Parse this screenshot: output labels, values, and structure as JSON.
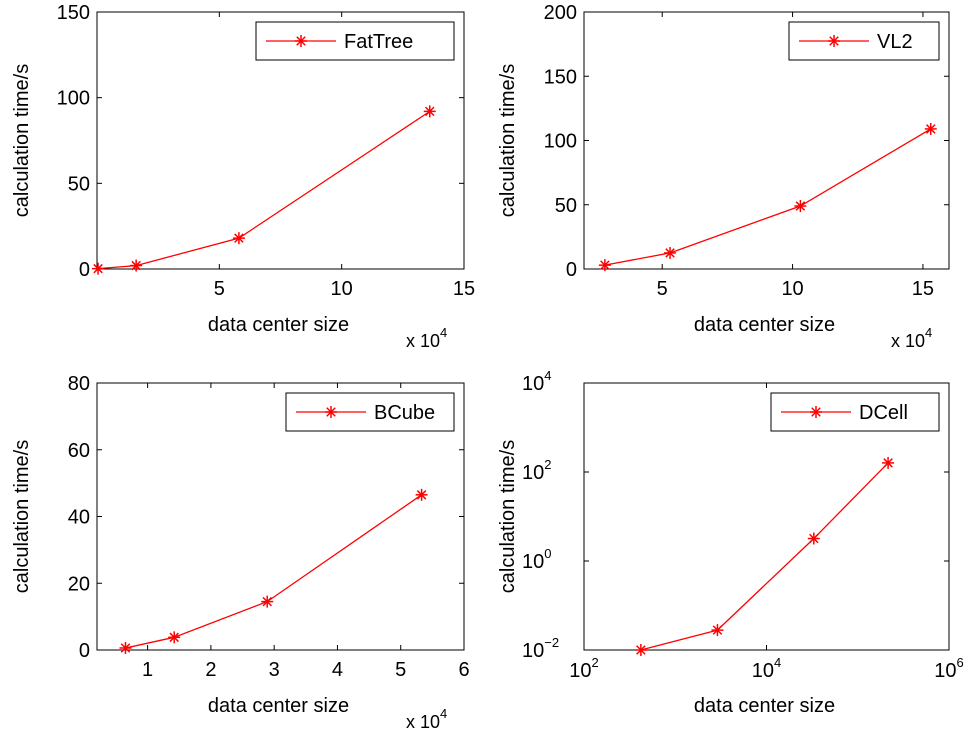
{
  "chart_data": [
    {
      "type": "line",
      "xlabel": "data center size",
      "ylabel": "calculation time/s",
      "x_scale": "linear",
      "y_scale": "linear",
      "xlim": [
        0,
        150000
      ],
      "ylim": [
        0,
        150
      ],
      "xticks": [
        50000,
        100000,
        150000
      ],
      "xtick_labels": [
        "5",
        "10",
        "15"
      ],
      "x_multiplier": {
        "base": "x 10",
        "exp": "4"
      },
      "yticks": [
        0,
        50,
        100,
        150
      ],
      "ytick_labels": [
        "0",
        "50",
        "100",
        "150"
      ],
      "grid": false,
      "legend_position": "top-right",
      "series": [
        {
          "name": "FatTree",
          "color": "#ff0000",
          "marker": "*",
          "x": [
            432,
            16000,
            58000,
            136000
          ],
          "y": [
            0.2,
            2,
            18,
            92
          ]
        }
      ]
    },
    {
      "type": "line",
      "xlabel": "data center size",
      "ylabel": "calculation time/s",
      "x_scale": "linear",
      "y_scale": "linear",
      "xlim": [
        20000,
        160000
      ],
      "ylim": [
        0,
        200
      ],
      "xticks": [
        50000,
        100000,
        150000
      ],
      "xtick_labels": [
        "5",
        "10",
        "15"
      ],
      "x_multiplier": {
        "base": "x 10",
        "exp": "4"
      },
      "yticks": [
        0,
        50,
        100,
        150,
        200
      ],
      "ytick_labels": [
        "0",
        "50",
        "100",
        "150",
        "200"
      ],
      "grid": false,
      "legend_position": "top-right",
      "series": [
        {
          "name": "VL2",
          "color": "#ff0000",
          "marker": "*",
          "x": [
            28000,
            53000,
            103000,
            153000
          ],
          "y": [
            3,
            12.5,
            49,
            109
          ]
        }
      ]
    },
    {
      "type": "line",
      "xlabel": "data center size",
      "ylabel": "calculation time/s",
      "x_scale": "linear",
      "y_scale": "linear",
      "xlim": [
        2000,
        60000
      ],
      "ylim": [
        0,
        80
      ],
      "xticks": [
        10000,
        20000,
        30000,
        40000,
        50000,
        60000
      ],
      "xtick_labels": [
        "1",
        "2",
        "3",
        "4",
        "5",
        "6"
      ],
      "x_multiplier": {
        "base": "x 10",
        "exp": "4"
      },
      "yticks": [
        0,
        20,
        40,
        60,
        80
      ],
      "ytick_labels": [
        "0",
        "20",
        "40",
        "60",
        "80"
      ],
      "grid": false,
      "legend_position": "top-right",
      "series": [
        {
          "name": "BCube",
          "color": "#ff0000",
          "marker": "*",
          "x": [
            6500,
            14200,
            28900,
            53300
          ],
          "y": [
            0.6,
            3.8,
            14.5,
            46.5
          ]
        }
      ]
    },
    {
      "type": "line",
      "xlabel": "data center size",
      "ylabel": "calculation time/s",
      "x_scale": "log",
      "y_scale": "log",
      "xlim": [
        100,
        1000000
      ],
      "ylim": [
        0.01,
        10000
      ],
      "xticks": [
        100,
        10000,
        1000000
      ],
      "xtick_labels": [
        {
          "base": "10",
          "exp": "2"
        },
        {
          "base": "10",
          "exp": "4"
        },
        {
          "base": "10",
          "exp": "6"
        }
      ],
      "yticks": [
        0.01,
        1,
        100,
        10000
      ],
      "ytick_labels": [
        {
          "base": "10",
          "exp": "−2"
        },
        {
          "base": "10",
          "exp": "0"
        },
        {
          "base": "10",
          "exp": "2"
        },
        {
          "base": "10",
          "exp": "4"
        }
      ],
      "grid": false,
      "legend_position": "top-right",
      "series": [
        {
          "name": "DCell",
          "color": "#ff0000",
          "marker": "*",
          "x": [
            420,
            2900,
            33000,
            215000
          ],
          "y": [
            0.01,
            0.028,
            3.2,
            160
          ]
        }
      ]
    }
  ]
}
